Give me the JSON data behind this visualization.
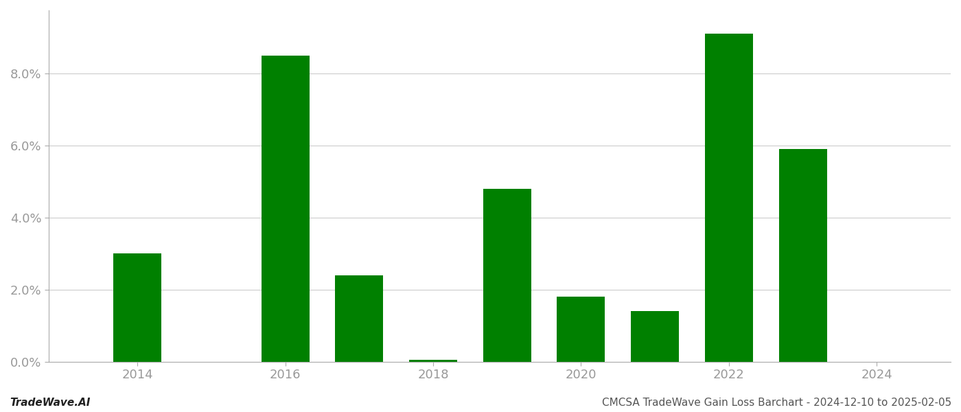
{
  "years": [
    2014,
    2015,
    2016,
    2017,
    2018,
    2019,
    2020,
    2021,
    2022,
    2023,
    2024
  ],
  "values": [
    0.03,
    null,
    0.085,
    0.024,
    0.0005,
    0.048,
    0.018,
    0.014,
    0.091,
    0.059,
    null
  ],
  "bar_color": "#008000",
  "background_color": "#ffffff",
  "footer_left": "TradeWave.AI",
  "footer_right": "CMCSA TradeWave Gain Loss Barchart - 2024-12-10 to 2025-02-05",
  "ylim_min": 0.0,
  "ylim_max": 0.0975,
  "ytick_values": [
    0.0,
    0.02,
    0.04,
    0.06,
    0.08
  ],
  "ytick_labels": [
    "0.0%",
    "2.0%",
    "4.0%",
    "6.0%",
    "8.0%"
  ],
  "xtick_values": [
    2014,
    2016,
    2018,
    2020,
    2022,
    2024
  ],
  "grid_color": "#cccccc",
  "spine_color": "#aaaaaa",
  "tick_color": "#999999",
  "bar_width": 0.65,
  "footer_fontsize": 11,
  "tick_fontsize": 13,
  "xlim_min": 2012.8,
  "xlim_max": 2025.0
}
